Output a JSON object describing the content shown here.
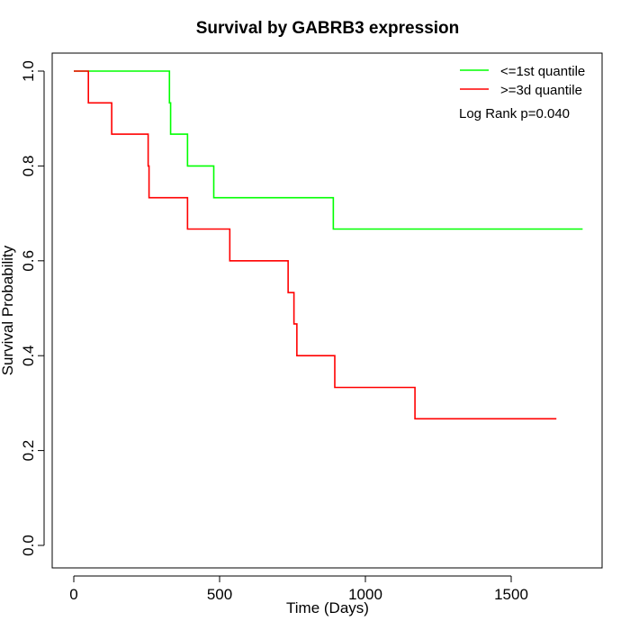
{
  "chart_data": {
    "type": "line",
    "step": true,
    "title": "Survival by GABRB3 expression",
    "xlabel": "Time (Days)",
    "ylabel": "Survival Probability",
    "xlim": [
      0,
      1750
    ],
    "ylim": [
      0,
      1
    ],
    "x_ticks": [
      0,
      500,
      1000,
      1500
    ],
    "x_tick_labels": [
      "0",
      "500",
      "1000",
      "1500"
    ],
    "y_ticks": [
      0,
      0.2,
      0.4,
      0.6,
      0.8,
      1.0
    ],
    "y_tick_labels": [
      "0.0",
      "0.2",
      "0.4",
      "0.6",
      "0.8",
      "1.0"
    ],
    "grid": false,
    "legend_position": "top-right",
    "annotation": "Log Rank p=0.040",
    "series": [
      {
        "name": "<=1st quantile",
        "color": "#00ff00",
        "x": [
          0,
          328,
          332,
          390,
          480,
          890,
          1745
        ],
        "y": [
          1.0,
          0.933,
          0.867,
          0.8,
          0.733,
          0.667,
          0.667
        ]
      },
      {
        "name": ">=3d quantile",
        "color": "#ff0000",
        "x": [
          0,
          50,
          130,
          255,
          258,
          390,
          535,
          735,
          755,
          765,
          895,
          1170,
          1655
        ],
        "y": [
          1.0,
          0.933,
          0.867,
          0.8,
          0.733,
          0.667,
          0.6,
          0.533,
          0.467,
          0.4,
          0.333,
          0.267,
          0.267
        ]
      }
    ]
  }
}
